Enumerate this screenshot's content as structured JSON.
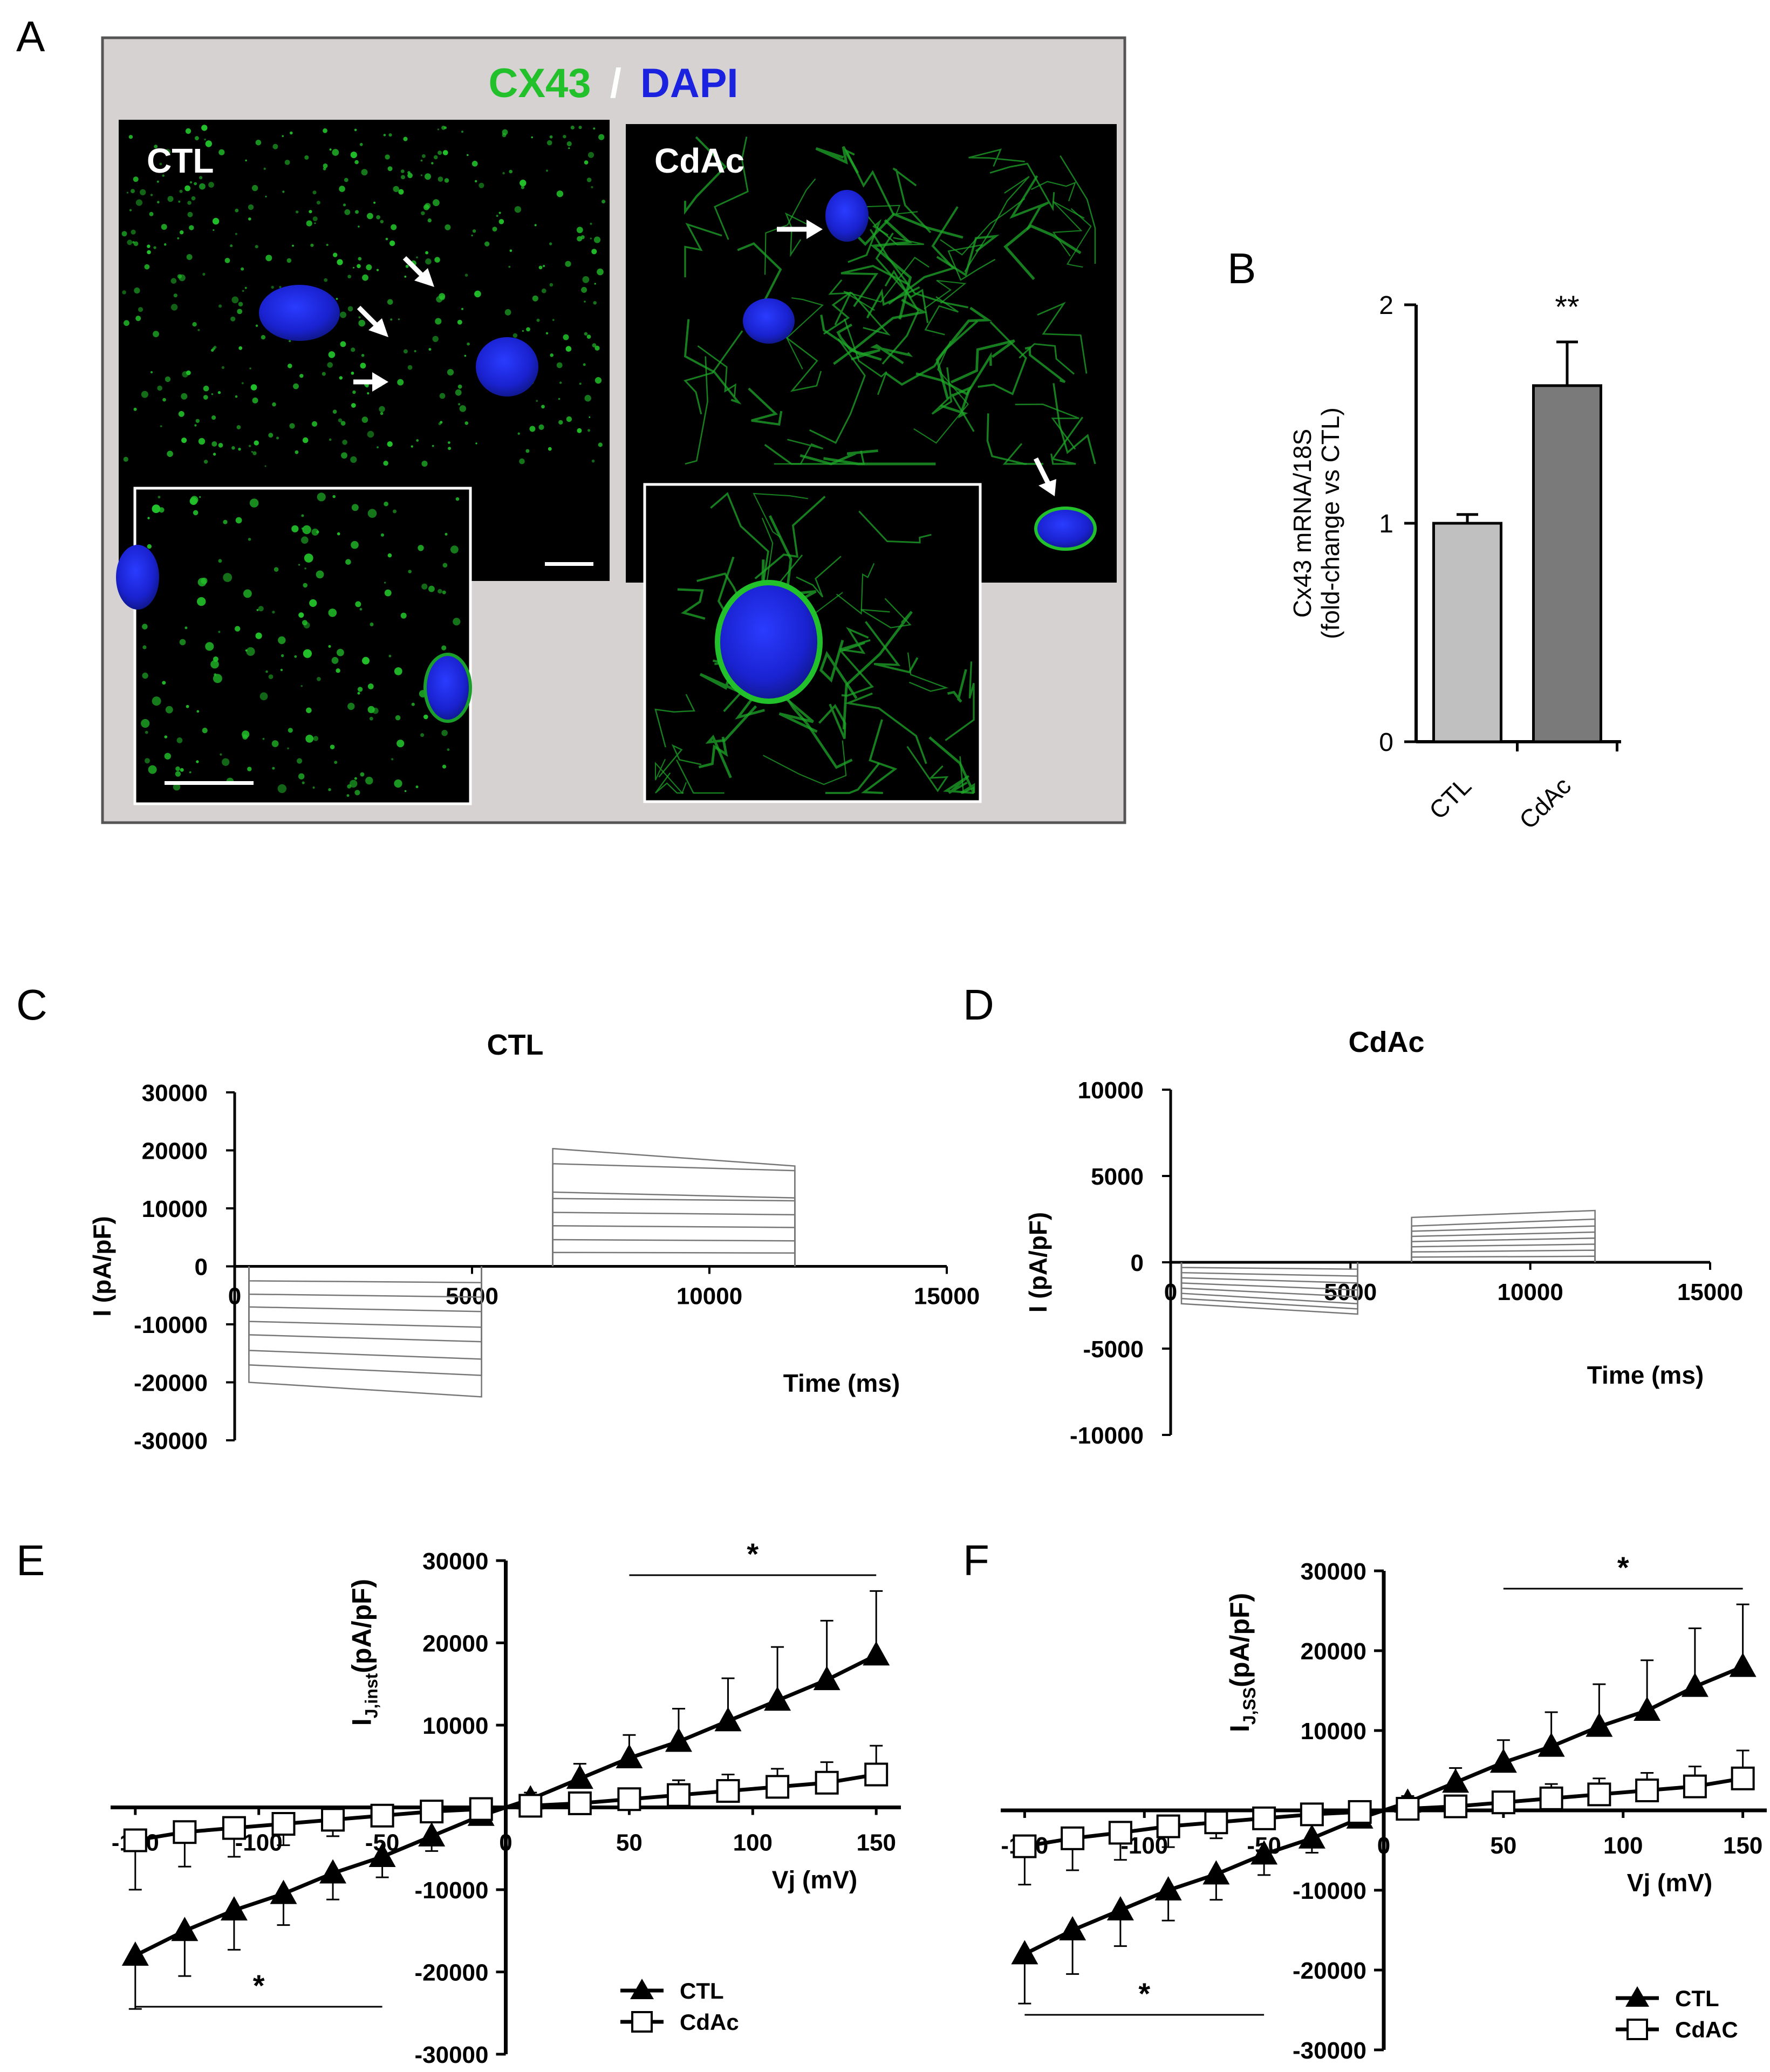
{
  "panel_labels": {
    "a": "A",
    "b": "B",
    "c": "C",
    "d": "D",
    "e": "E",
    "f": "F"
  },
  "panel_a": {
    "title_green": "CX43",
    "title_slash": "/",
    "title_blue": "DAPI",
    "left_label": "CTL",
    "right_label": "CdAc",
    "colors": {
      "frame": "#d6d2d2",
      "green": "#22c02a",
      "blue": "#1a22e0",
      "cell_bg": "#000000"
    }
  },
  "chart_data": [
    {
      "id": "B",
      "type": "bar",
      "categories": [
        "CTL",
        "CdAc"
      ],
      "values": [
        1.0,
        1.63
      ],
      "errors": [
        0.04,
        0.2
      ],
      "ylabel_line1": "Cx43 mRNA/18S",
      "ylabel_line2": "(fold-change vs CTL)",
      "ylim": [
        0,
        2
      ],
      "yticks": [
        "0",
        "1",
        "2"
      ],
      "annotation": "**",
      "colors": [
        "#c0c0c0",
        "#7a7a7a"
      ]
    },
    {
      "id": "C",
      "type": "line",
      "title": "CTL",
      "xlabel": "Time (ms)",
      "ylabel": "I (pA/pF)",
      "xlim": [
        0,
        15000
      ],
      "ylim": [
        -30000,
        30000
      ],
      "xticks": [
        "0",
        "5000",
        "10000",
        "15000"
      ],
      "yticks": [
        "30000",
        "20000",
        "10000",
        "0",
        "-10000",
        "-20000",
        "-30000"
      ],
      "neg_window": [
        300,
        5200
      ],
      "pos_window": [
        6700,
        11800
      ],
      "neg_levels": [
        -2500,
        -4800,
        -7000,
        -9500,
        -11800,
        -14500,
        -17000,
        -20000
      ],
      "neg_end_levels": [
        -2800,
        -5300,
        -7800,
        -10500,
        -13000,
        -16000,
        -18800,
        -22500
      ],
      "pos_levels": [
        2400,
        4600,
        7000,
        9300,
        11700,
        12800,
        17700,
        20300
      ],
      "pos_end_levels": [
        2300,
        4400,
        6700,
        8900,
        11300,
        11800,
        16500,
        17300
      ]
    },
    {
      "id": "D",
      "type": "line",
      "title": "CdAc",
      "xlabel": "Time (ms)",
      "ylabel": "I (pA/pF)",
      "xlim": [
        0,
        15000
      ],
      "ylim": [
        -10000,
        10000
      ],
      "xticks": [
        "0",
        "5000",
        "10000",
        "15000"
      ],
      "yticks": [
        "10000",
        "5000",
        "0",
        "-5000",
        "-10000"
      ],
      "neg_window": [
        300,
        5200
      ],
      "pos_window": [
        6700,
        11800
      ],
      "neg_levels": [
        -300,
        -600,
        -900,
        -1200,
        -1500,
        -1800,
        -2100,
        -2400
      ],
      "neg_end_levels": [
        -400,
        -800,
        -1200,
        -1600,
        -2000,
        -2400,
        -2700,
        -3000
      ],
      "pos_levels": [
        300,
        600,
        900,
        1200,
        1500,
        1800,
        2100,
        2600
      ],
      "pos_end_levels": [
        350,
        700,
        1050,
        1400,
        1750,
        2100,
        2500,
        3000
      ]
    },
    {
      "id": "E",
      "type": "line",
      "xlabel": "Vj (mV)",
      "ylabel_main": "I",
      "ylabel_sub": "J,inst",
      "ylabel_rest": "(pA/pF)",
      "xlim": [
        -160,
        160
      ],
      "ylim": [
        -30000,
        30000
      ],
      "xticks": [
        "-150",
        "-100",
        "-50",
        "0",
        "50",
        "100",
        "150"
      ],
      "yticks": [
        "30000",
        "20000",
        "10000",
        "-10000",
        "-20000",
        "-30000"
      ],
      "x": [
        -150,
        -130,
        -110,
        -90,
        -70,
        -50,
        -30,
        -10,
        10,
        30,
        50,
        70,
        90,
        110,
        130,
        150
      ],
      "series": [
        {
          "name": "CTL",
          "marker": "triangle",
          "values": [
            -18000,
            -15000,
            -12500,
            -10500,
            -8000,
            -6000,
            -3500,
            -1000,
            1000,
            3500,
            6000,
            8000,
            10500,
            13000,
            15500,
            18500
          ],
          "errors": [
            6500,
            5500,
            4800,
            3800,
            3200,
            2500,
            1800,
            800,
            800,
            1800,
            2800,
            4000,
            5200,
            6500,
            7200,
            7800
          ]
        },
        {
          "name": "CdAc",
          "marker": "square",
          "values": [
            -4000,
            -3000,
            -2500,
            -2000,
            -1500,
            -1000,
            -500,
            -200,
            200,
            500,
            1000,
            1500,
            2000,
            2500,
            3000,
            4000
          ],
          "errors": [
            6000,
            4200,
            3500,
            2600,
            2000,
            1300,
            800,
            400,
            400,
            800,
            1300,
            1800,
            2000,
            2200,
            2500,
            3500
          ]
        }
      ],
      "sig_marks": [
        "*",
        "*"
      ]
    },
    {
      "id": "F",
      "type": "line",
      "xlabel": "Vj (mV)",
      "ylabel_main": "I",
      "ylabel_sub": "J,SS",
      "ylabel_rest": "(pA/pF)",
      "xlim": [
        -160,
        160
      ],
      "ylim": [
        -30000,
        30000
      ],
      "xticks": [
        "-150",
        "-100",
        "-50",
        "0",
        "50",
        "100",
        "150"
      ],
      "yticks": [
        "30000",
        "20000",
        "10000",
        "-10000",
        "-20000",
        "-30000"
      ],
      "x": [
        -150,
        -130,
        -110,
        -90,
        -70,
        -50,
        -30,
        -10,
        10,
        30,
        50,
        70,
        90,
        110,
        130,
        150
      ],
      "series": [
        {
          "name": "CTL",
          "marker": "triangle",
          "values": [
            -18000,
            -15000,
            -12500,
            -10000,
            -8000,
            -5500,
            -3500,
            -1000,
            1000,
            3500,
            6000,
            8000,
            10500,
            12500,
            15500,
            18000
          ],
          "errors": [
            6200,
            5500,
            4500,
            3800,
            3200,
            2600,
            1800,
            800,
            800,
            1800,
            2800,
            4300,
            5300,
            6300,
            7300,
            7800
          ]
        },
        {
          "name": "CdAC",
          "marker": "square",
          "values": [
            -4500,
            -3500,
            -2800,
            -2000,
            -1500,
            -1000,
            -500,
            -200,
            200,
            500,
            1000,
            1500,
            2000,
            2500,
            3000,
            4000
          ],
          "errors": [
            4800,
            4000,
            3400,
            2600,
            2000,
            1300,
            800,
            400,
            400,
            800,
            1300,
            1800,
            2000,
            2200,
            2500,
            3500
          ]
        }
      ],
      "sig_marks": [
        "*",
        "*"
      ]
    }
  ]
}
